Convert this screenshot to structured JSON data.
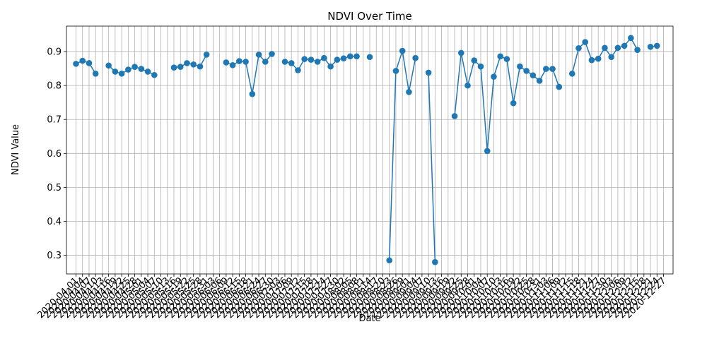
{
  "chart_data": {
    "type": "line",
    "title": "NDVI Over Time",
    "xlabel": "Date",
    "ylabel": "NDVI Value",
    "ylim": [
      0.245,
      0.975
    ],
    "yticks": [
      0.3,
      0.4,
      0.5,
      0.6,
      0.7,
      0.8,
      0.9
    ],
    "grid": true,
    "color": "#1f77b4",
    "start_date": "2020-04-01",
    "end_date": "2020-12-27",
    "tick_interval_days": 3,
    "points": [
      [
        "2020-04-01",
        0.864
      ],
      [
        "2020-04-04",
        0.873
      ],
      [
        "2020-04-07",
        0.866
      ],
      [
        "2020-04-10",
        0.835
      ],
      [
        "2020-04-16",
        0.859
      ],
      [
        "2020-04-19",
        0.841
      ],
      [
        "2020-04-22",
        0.835
      ],
      [
        "2020-04-25",
        0.847
      ],
      [
        "2020-04-28",
        0.855
      ],
      [
        "2020-05-01",
        0.849
      ],
      [
        "2020-05-04",
        0.841
      ],
      [
        "2020-05-07",
        0.831
      ],
      [
        "2020-05-16",
        0.853
      ],
      [
        "2020-05-19",
        0.855
      ],
      [
        "2020-05-22",
        0.866
      ],
      [
        "2020-05-25",
        0.862
      ],
      [
        "2020-05-28",
        0.856
      ],
      [
        "2020-05-31",
        0.891
      ],
      [
        "2020-06-09",
        0.868
      ],
      [
        "2020-06-12",
        0.86
      ],
      [
        "2020-06-15",
        0.872
      ],
      [
        "2020-06-18",
        0.87
      ],
      [
        "2020-06-21",
        0.775
      ],
      [
        "2020-06-24",
        0.891
      ],
      [
        "2020-06-27",
        0.87
      ],
      [
        "2020-06-30",
        0.893
      ],
      [
        "2020-07-06",
        0.87
      ],
      [
        "2020-07-09",
        0.866
      ],
      [
        "2020-07-12",
        0.845
      ],
      [
        "2020-07-15",
        0.878
      ],
      [
        "2020-07-18",
        0.876
      ],
      [
        "2020-07-21",
        0.87
      ],
      [
        "2020-07-24",
        0.881
      ],
      [
        "2020-07-27",
        0.856
      ],
      [
        "2020-07-30",
        0.876
      ],
      [
        "2020-08-02",
        0.88
      ],
      [
        "2020-08-05",
        0.886
      ],
      [
        "2020-08-08",
        0.886
      ],
      [
        "2020-08-14",
        0.884
      ],
      [
        "2020-08-23",
        0.285
      ],
      [
        "2020-08-26",
        0.843
      ],
      [
        "2020-08-29",
        0.902
      ],
      [
        "2020-09-01",
        0.781
      ],
      [
        "2020-09-04",
        0.881
      ],
      [
        "2020-09-10",
        0.838
      ],
      [
        "2020-09-13",
        0.28
      ],
      [
        "2020-09-22",
        0.71
      ],
      [
        "2020-09-25",
        0.896
      ],
      [
        "2020-09-28",
        0.8
      ],
      [
        "2020-10-01",
        0.874
      ],
      [
        "2020-10-04",
        0.856
      ],
      [
        "2020-10-07",
        0.607
      ],
      [
        "2020-10-10",
        0.826
      ],
      [
        "2020-10-13",
        0.886
      ],
      [
        "2020-10-16",
        0.878
      ],
      [
        "2020-10-19",
        0.748
      ],
      [
        "2020-10-22",
        0.856
      ],
      [
        "2020-10-25",
        0.843
      ],
      [
        "2020-10-28",
        0.83
      ],
      [
        "2020-10-31",
        0.814
      ],
      [
        "2020-11-03",
        0.849
      ],
      [
        "2020-11-06",
        0.849
      ],
      [
        "2020-11-09",
        0.796
      ],
      [
        "2020-11-15",
        0.835
      ],
      [
        "2020-11-18",
        0.91
      ],
      [
        "2020-11-21",
        0.928
      ],
      [
        "2020-11-24",
        0.875
      ],
      [
        "2020-11-27",
        0.879
      ],
      [
        "2020-11-30",
        0.911
      ],
      [
        "2020-12-03",
        0.884
      ],
      [
        "2020-12-06",
        0.911
      ],
      [
        "2020-12-09",
        0.917
      ],
      [
        "2020-12-12",
        0.94
      ],
      [
        "2020-12-15",
        0.905
      ],
      [
        "2020-12-21",
        0.914
      ],
      [
        "2020-12-24",
        0.917
      ]
    ]
  }
}
